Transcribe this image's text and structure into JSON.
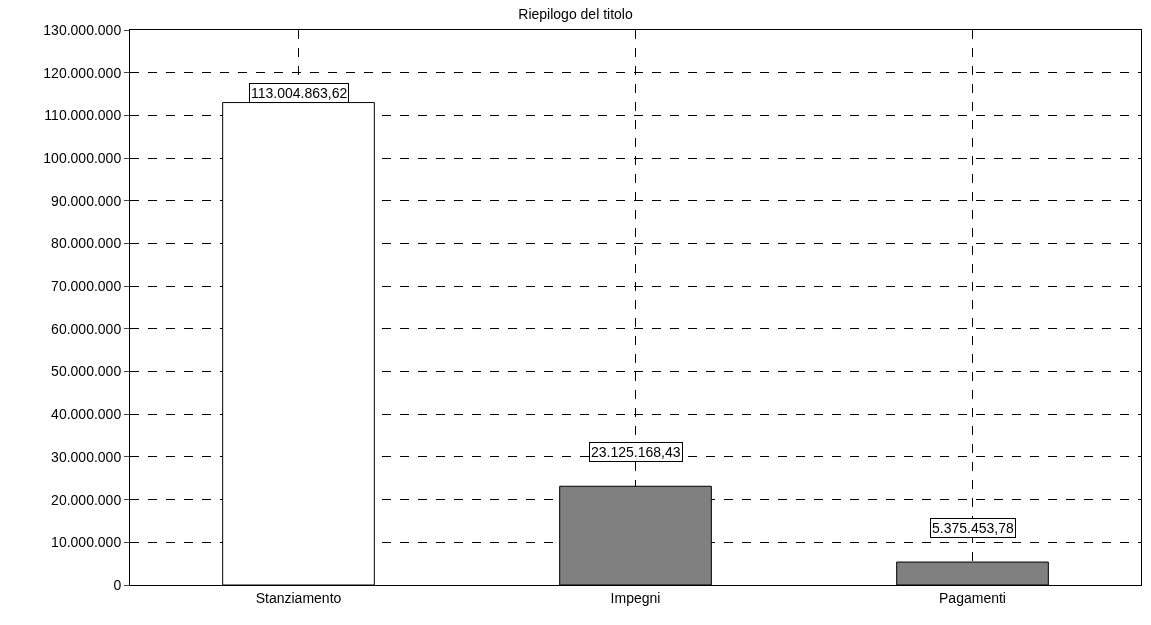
{
  "chart_data": {
    "type": "bar",
    "title": "Riepilogo del titolo",
    "categories": [
      "Stanziamento",
      "Impegni",
      "Pagamenti"
    ],
    "values": [
      113004863.62,
      23125168.43,
      5375453.78
    ],
    "colors": [
      "#ffffff",
      "#808080",
      "#808080"
    ],
    "value_labels": [
      "113.004.863,62",
      "23.125.168,43",
      "5.375.453,78"
    ],
    "ylim": [
      0,
      130000000
    ],
    "yticks": [
      {
        "value": 0,
        "label": "0"
      },
      {
        "value": 10000000,
        "label": "10.000.000"
      },
      {
        "value": 20000000,
        "label": "20.000.000"
      },
      {
        "value": 30000000,
        "label": "30.000.000"
      },
      {
        "value": 40000000,
        "label": "40.000.000"
      },
      {
        "value": 50000000,
        "label": "50.000.000"
      },
      {
        "value": 60000000,
        "label": "60.000.000"
      },
      {
        "value": 70000000,
        "label": "70.000.000"
      },
      {
        "value": 80000000,
        "label": "80.000.000"
      },
      {
        "value": 90000000,
        "label": "90.000.000"
      },
      {
        "value": 100000000,
        "label": "100.000.000"
      },
      {
        "value": 110000000,
        "label": "110.000.000"
      },
      {
        "value": 120000000,
        "label": "120.000.000"
      },
      {
        "value": 130000000,
        "label": "130.000.000"
      }
    ],
    "grid": true,
    "legend": false
  }
}
